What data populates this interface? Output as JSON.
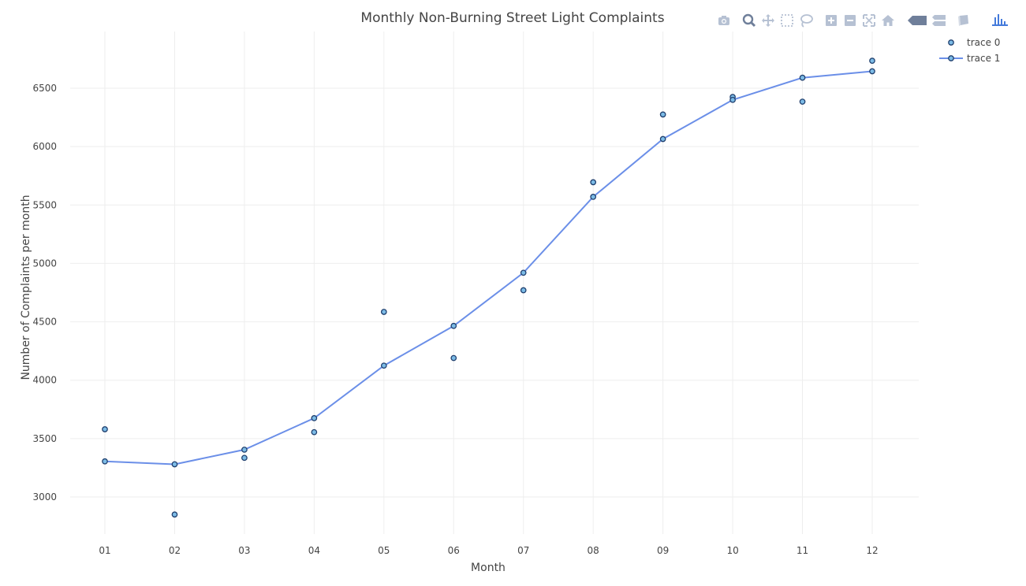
{
  "chart_data": {
    "type": "scatter",
    "title": "Monthly Non-Burning Street Light Complaints",
    "xlabel": "Month",
    "ylabel": "Number of Complaints per month",
    "categories": [
      "01",
      "02",
      "03",
      "04",
      "05",
      "06",
      "07",
      "08",
      "09",
      "10",
      "11",
      "12"
    ],
    "ylim": [
      2700,
      6950
    ],
    "yticks": [
      3000,
      3500,
      4000,
      4500,
      5000,
      5500,
      6000,
      6500
    ],
    "grid": true,
    "legend_position": "top-right",
    "series": [
      {
        "name": "trace 0",
        "mode": "markers",
        "values": [
          3580,
          2850,
          3335,
          3555,
          4585,
          4190,
          4770,
          5695,
          6275,
          6425,
          6385,
          6735
        ]
      },
      {
        "name": "trace 1",
        "mode": "lines+markers",
        "values": [
          3305,
          3280,
          3405,
          3675,
          4125,
          4465,
          4920,
          5570,
          6065,
          6400,
          6590,
          6645
        ]
      }
    ],
    "colors": {
      "line": "#6b8fe8",
      "marker_fill": "#7cbbe6",
      "marker_edge": "#1f3f6e",
      "grid": "#eeeeee"
    }
  },
  "modebar": {
    "icons": [
      "camera-icon",
      "zoom-icon",
      "pan-icon",
      "box-select-icon",
      "lasso-select-icon",
      "zoom-in-icon",
      "zoom-out-icon",
      "autoscale-icon",
      "reset-axes-icon",
      "hover-closest-icon",
      "hover-compare-icon",
      "toggle-spikelines-icon",
      "plotly-logo-icon"
    ]
  }
}
